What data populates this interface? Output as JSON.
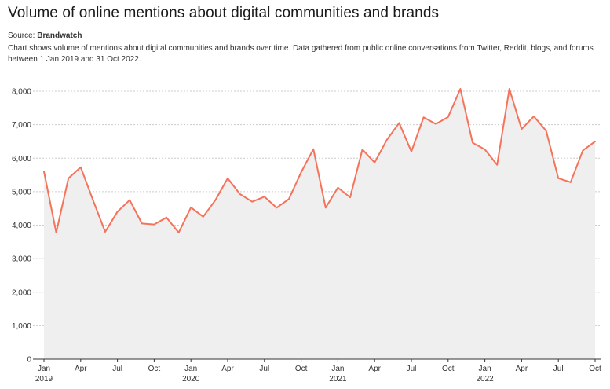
{
  "header": {
    "title": "Volume of online mentions about digital communities and brands",
    "source_label": "Source:",
    "source_name": "Brandwatch",
    "description": "Chart shows volume of mentions about digital communities and brands over time. Data gathered from public online conversations from Twitter, Reddit, blogs, and forums between 1 Jan 2019 and 31 Oct 2022."
  },
  "colors": {
    "line": "#f4735a",
    "area": "#efefef",
    "grid": "#cccccc",
    "axis": "#333333"
  },
  "chart_data": {
    "type": "area",
    "title": "Volume of online mentions about digital communities and brands",
    "xlabel": "",
    "ylabel": "",
    "ylim": [
      0,
      8000
    ],
    "grid": true,
    "y_ticks": [
      {
        "value": 0,
        "label": "0"
      },
      {
        "value": 1000,
        "label": "1,000"
      },
      {
        "value": 2000,
        "label": "2,000"
      },
      {
        "value": 3000,
        "label": "3,000"
      },
      {
        "value": 4000,
        "label": "4,000"
      },
      {
        "value": 5000,
        "label": "5,000"
      },
      {
        "value": 6000,
        "label": "6,000"
      },
      {
        "value": 7000,
        "label": "7,000"
      },
      {
        "value": 8000,
        "label": "8,000"
      }
    ],
    "x_ticks": [
      {
        "index": 0,
        "label": "Jan",
        "year": "2019"
      },
      {
        "index": 3,
        "label": "Apr"
      },
      {
        "index": 6,
        "label": "Jul"
      },
      {
        "index": 9,
        "label": "Oct"
      },
      {
        "index": 12,
        "label": "Jan",
        "year": "2020"
      },
      {
        "index": 15,
        "label": "Apr"
      },
      {
        "index": 18,
        "label": "Jul"
      },
      {
        "index": 21,
        "label": "Oct"
      },
      {
        "index": 24,
        "label": "Jan",
        "year": "2021"
      },
      {
        "index": 27,
        "label": "Apr"
      },
      {
        "index": 30,
        "label": "Jul"
      },
      {
        "index": 33,
        "label": "Oct"
      },
      {
        "index": 36,
        "label": "Jan",
        "year": "2022"
      },
      {
        "index": 39,
        "label": "Apr"
      },
      {
        "index": 42,
        "label": "Jul"
      },
      {
        "index": 45,
        "label": "Oct"
      }
    ],
    "series": [
      {
        "name": "Mentions",
        "values": [
          5600,
          3780,
          5400,
          5730,
          4750,
          3800,
          4400,
          4750,
          4050,
          4020,
          4230,
          3780,
          4530,
          4250,
          4750,
          5400,
          4930,
          4700,
          4850,
          4520,
          4780,
          5580,
          6270,
          4520,
          5120,
          4830,
          6260,
          5870,
          6550,
          7050,
          6200,
          7220,
          7020,
          7230,
          8070,
          6460,
          6260,
          5800,
          8070,
          6870,
          7250,
          6820,
          5400,
          5280,
          6230,
          6500
        ]
      }
    ]
  }
}
